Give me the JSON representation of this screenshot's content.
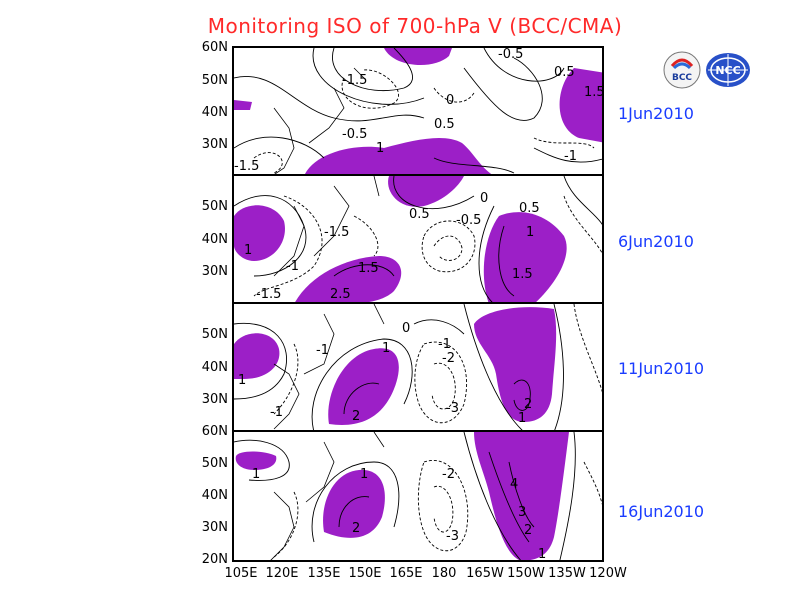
{
  "title": "Monitoring ISO of 700-hPa V (BCC/CMA)",
  "logos": [
    {
      "name": "bcc-logo",
      "text": "BCC"
    },
    {
      "name": "ncc-logo",
      "text": "NCC"
    }
  ],
  "colors": {
    "title": "#ff2a2a",
    "date": "#1a3cff",
    "positive_shade": "#9c1fc7"
  },
  "x_axis_labels": [
    "105E",
    "120E",
    "135E",
    "150E",
    "165E",
    "180",
    "165W",
    "150W",
    "135W",
    "120W"
  ],
  "panels": [
    {
      "date": "1Jun2010",
      "y_labels": [
        "60N",
        "50N",
        "40N",
        "30N"
      ],
      "contour_labels": [
        "-1.5",
        "0",
        "-0.5",
        "0.5",
        "1",
        "-1.5",
        "-0.5",
        "0.5",
        "1.5",
        "-1"
      ]
    },
    {
      "date": "6Jun2010",
      "y_labels": [
        "50N",
        "40N",
        "30N"
      ],
      "contour_labels": [
        "1",
        "-1.5",
        "-1",
        "-1.5",
        "1.5",
        "2.5",
        "0",
        "0.5",
        "-0.5",
        "0.5",
        "1",
        "1.5"
      ]
    },
    {
      "date": "11Jun2010",
      "y_labels": [
        "50N",
        "40N",
        "30N"
      ],
      "contour_labels": [
        "1",
        "-1",
        "1",
        "2",
        "0",
        "-1",
        "-2",
        "-3",
        "2",
        "1",
        "-1"
      ]
    },
    {
      "date": "16Jun2010",
      "y_labels": [
        "60N",
        "50N",
        "40N",
        "30N",
        "20N"
      ],
      "contour_labels": [
        "1",
        "1",
        "2",
        "-2",
        "-3",
        "4",
        "3",
        "2",
        "1"
      ]
    }
  ]
}
